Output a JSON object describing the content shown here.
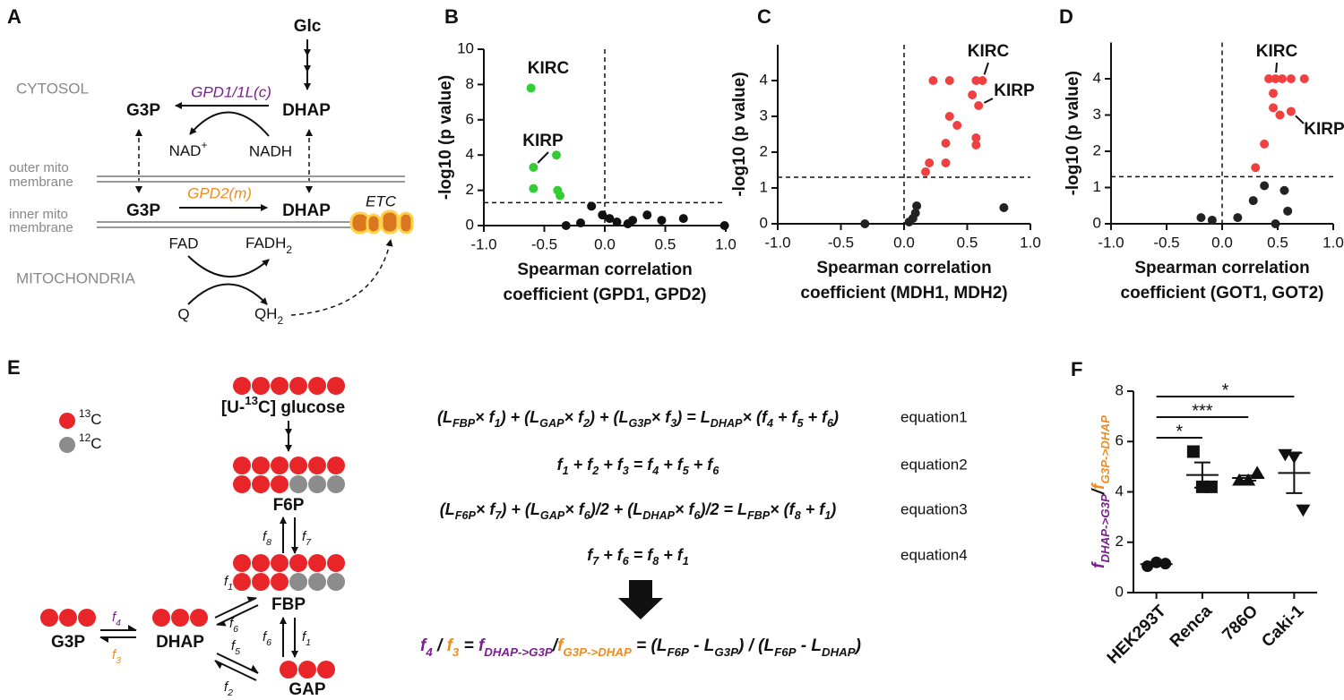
{
  "panel_labels": [
    "A",
    "B",
    "C",
    "D",
    "E",
    "F"
  ],
  "panel_a": {
    "glc": "Glc",
    "cytosol": "CYTOSOL",
    "enzyme_c": "GPD1/1L(c)",
    "g3p_c": "G3P",
    "dhap_c": "DHAP",
    "nad": [
      {
        "t": "NAD",
        "sup": "+"
      }
    ],
    "nadh": "NADH",
    "outer": [
      "outer mito",
      "membrane"
    ],
    "inner": [
      "inner mito",
      "membrane"
    ],
    "g3p_m": "G3P",
    "enzyme_m": "GPD2(m)",
    "dhap_m": "DHAP",
    "etc": "ETC",
    "fad": "FAD",
    "fadh2": [
      {
        "t": "FADH",
        "sub": "2"
      }
    ],
    "mito": "MITOCHONDRIA",
    "q": "Q",
    "qh2": [
      {
        "t": "QH",
        "sub": "2"
      }
    ]
  },
  "panel_e": {
    "glucose": [
      {
        "t": "[U-",
        "sup": "13"
      },
      {
        "t": "C] glucose"
      }
    ],
    "legend": [
      [
        {
          "t": "",
          "sup": "13"
        },
        {
          "t": "C"
        }
      ],
      [
        {
          "t": "",
          "sup": "12"
        },
        {
          "t": "C"
        }
      ]
    ],
    "f6p": "F6P",
    "fbp": "FBP",
    "gap": "GAP",
    "g3p": "G3P",
    "dhap": "DHAP",
    "fluxes": [
      [
        {
          "t": "f",
          "sub": "8"
        }
      ],
      [
        {
          "t": "f",
          "sub": "7"
        }
      ],
      [
        {
          "t": "f",
          "sub": "1"
        }
      ],
      [
        {
          "t": "f",
          "sub": "6"
        }
      ],
      [
        {
          "t": "f",
          "sub": "6"
        }
      ],
      [
        {
          "t": "f",
          "sub": "1"
        }
      ],
      [
        {
          "t": "f",
          "sub": "5"
        }
      ],
      [
        {
          "t": "f",
          "sub": "2"
        }
      ],
      [
        {
          "t": "f",
          "sub": "4",
          "color": "#7a1f8e"
        }
      ],
      [
        {
          "t": "f",
          "sub": "3",
          "color": "#f08c1e"
        }
      ]
    ],
    "equations": [
      [
        {
          "t": "(L",
          "sub": "FBP"
        },
        {
          "t": "× f",
          "sub": "1"
        },
        {
          "t": ") + (L",
          "sub": "GAP"
        },
        {
          "t": "× f",
          "sub": "2"
        },
        {
          "t": ") + (L",
          "sub": "G3P"
        },
        {
          "t": "× f",
          "sub": "3"
        },
        {
          "t": ") = L",
          "sub": "DHAP"
        },
        {
          "t": "× (f",
          "sub": "4"
        },
        {
          "t": " + f",
          "sub": "5"
        },
        {
          "t": " + f",
          "sub": "6"
        },
        {
          "t": ")"
        }
      ],
      [
        {
          "t": "f",
          "sub": "1"
        },
        {
          "t": " + f",
          "sub": "2"
        },
        {
          "t": " + f",
          "sub": "3"
        },
        {
          "t": " = f",
          "sub": "4"
        },
        {
          "t": " + f",
          "sub": "5"
        },
        {
          "t": " + f",
          "sub": "6"
        }
      ],
      [
        {
          "t": "(L",
          "sub": "F6P"
        },
        {
          "t": "× f",
          "sub": "7"
        },
        {
          "t": ") + (L",
          "sub": "GAP"
        },
        {
          "t": "× f",
          "sub": "6"
        },
        {
          "t": ")/2 + (L",
          "sub": "DHAP"
        },
        {
          "t": "× f",
          "sub": "6"
        },
        {
          "t": ")/2 = L",
          "sub": "FBP"
        },
        {
          "t": "× (f",
          "sub": "8"
        },
        {
          "t": " + f",
          "sub": "1"
        },
        {
          "t": ")"
        }
      ],
      [
        {
          "t": "f",
          "sub": "7"
        },
        {
          "t": " + f",
          "sub": "6"
        },
        {
          "t": " = f",
          "sub": "8"
        },
        {
          "t": " + f",
          "sub": "1"
        }
      ]
    ],
    "equation_names": [
      "equation1",
      "equation2",
      "equation3",
      "equation4"
    ],
    "result": [
      {
        "t": "f",
        "sub": "4",
        "color": "#7a1f8e"
      },
      {
        "t": " / "
      },
      {
        "t": "f",
        "sub": "3",
        "color": "#f08c1e"
      },
      {
        "t": " = "
      },
      {
        "t": "f",
        "sub": "DHAP->G3P",
        "color": "#7a1f8e"
      },
      {
        "t": "/"
      },
      {
        "t": "f",
        "sub": "G3P->DHAP",
        "color": "#f08c1e"
      },
      {
        "t": " = (L",
        "sub": "F6P"
      },
      {
        "t": " - L",
        "sub": "G3P"
      },
      {
        "t": ") / (L",
        "sub": "F6P"
      },
      {
        "t": " - L",
        "sub": "DHAP"
      },
      {
        "t": ")"
      }
    ]
  },
  "chart_data": [
    {
      "type": "scatter",
      "ylabel": "-log10 (p value)",
      "xlabel": [
        "Spearman correlation",
        "coefficient (GPD1, GPD2)"
      ],
      "xlim": [
        -1,
        1
      ],
      "xticks": [
        {
          "value": -1,
          "label": "-1.0"
        },
        -0.5,
        {
          "value": 0,
          "label": "0.0"
        },
        0.5,
        {
          "value": 1,
          "label": "1.0"
        }
      ],
      "ylim": [
        0,
        10
      ],
      "yticks": [
        0,
        2,
        4,
        6,
        8,
        10
      ],
      "hlines": [
        1.3
      ],
      "vlines": [
        0
      ],
      "series": [
        {
          "color": "#33cc33",
          "x": [
            -0.61,
            -0.59,
            -0.59,
            -0.4,
            -0.39,
            -0.37
          ],
          "values": [
            7.8,
            3.3,
            2.1,
            4.0,
            2.0,
            1.7
          ]
        },
        {
          "color": "#111111",
          "x": [
            -0.32,
            -0.2,
            -0.11,
            -0.02,
            0.04,
            0.1,
            0.19,
            0.23,
            0.35,
            0.47,
            0.65,
            0.99
          ],
          "values": [
            0,
            0.15,
            1.1,
            0.6,
            0.4,
            0.2,
            0.1,
            0.3,
            0.6,
            0.3,
            0.4,
            0
          ]
        }
      ],
      "annotations": [
        {
          "text": "KIRC",
          "series": 0,
          "point": 0
        },
        {
          "text": "KIRP",
          "series": 0,
          "point": 1
        }
      ]
    },
    {
      "type": "scatter",
      "ylabel": "-log10 (p value)",
      "xlabel": [
        "Spearman correlation",
        "coefficient (MDH1, MDH2)"
      ],
      "xlim": [
        -1,
        1
      ],
      "xticks": [
        {
          "value": -1,
          "label": "-1.0"
        },
        -0.5,
        {
          "value": 0,
          "label": "0.0"
        },
        0.5,
        {
          "value": 1,
          "label": "1.0"
        }
      ],
      "ylim": [
        0,
        5
      ],
      "yticks": [
        0,
        1,
        2,
        3,
        4
      ],
      "hlines": [
        1.3
      ],
      "vlines": [
        0
      ],
      "series": [
        {
          "color": "#f04040",
          "x": [
            0.23,
            0.36,
            0.57,
            0.62,
            0.54,
            0.59,
            0.36,
            0.42,
            0.57,
            0.57,
            0.33,
            0.33,
            0.2,
            0.17
          ],
          "values": [
            4,
            4,
            4,
            4,
            3.6,
            3.3,
            3.0,
            2.75,
            2.4,
            2.2,
            2.25,
            1.7,
            1.7,
            1.45
          ]
        },
        {
          "color": "#222222",
          "x": [
            -0.31,
            0.04,
            0.07,
            0.09,
            0.1,
            0.79
          ],
          "values": [
            0,
            0.05,
            0.15,
            0.3,
            0.5,
            0.45
          ]
        }
      ],
      "annotations": [
        {
          "text": "KIRC",
          "series": 0,
          "point": 3
        },
        {
          "text": "KIRP",
          "series": 0,
          "point": 5
        }
      ]
    },
    {
      "type": "scatter",
      "ylabel": "-log10 (p value)",
      "xlabel": [
        "Spearman correlation",
        "coefficient (GOT1, GOT2)"
      ],
      "xlim": [
        -1,
        1
      ],
      "xticks": [
        {
          "value": -1,
          "label": "-1.0"
        },
        -0.5,
        {
          "value": 0,
          "label": "0.0"
        },
        0.5,
        {
          "value": 1,
          "label": "1.0"
        }
      ],
      "ylim": [
        0,
        5
      ],
      "yticks": [
        0,
        1,
        2,
        3,
        4
      ],
      "hlines": [
        1.3
      ],
      "vlines": [
        0
      ],
      "series": [
        {
          "color": "#f04040",
          "x": [
            0.42,
            0.48,
            0.54,
            0.62,
            0.74,
            0.46,
            0.46,
            0.52,
            0.62,
            0.38,
            0.3
          ],
          "values": [
            4,
            4,
            4,
            4,
            4,
            3.6,
            3.2,
            3.0,
            3.1,
            2.2,
            1.55
          ]
        },
        {
          "color": "#222222",
          "x": [
            -0.19,
            -0.09,
            0.14,
            0.28,
            0.38,
            0.48,
            0.56,
            0.59
          ],
          "values": [
            0.17,
            0.1,
            0.17,
            0.64,
            1.05,
            0,
            0.92,
            0.35
          ]
        }
      ],
      "annotations": [
        {
          "text": "KIRC",
          "series": 0,
          "point": 1
        },
        {
          "text": "KIRP",
          "series": 0,
          "point": 8
        }
      ]
    },
    {
      "type": "dot",
      "ylabel": [
        {
          "t": "f",
          "sub": "DHAP->G3P",
          "color": "#7a1f8e"
        },
        {
          "t": "/"
        },
        {
          "t": "f",
          "sub": "G3P->DHAP",
          "color": "#f08c1e"
        }
      ],
      "categories": [
        "HEK293T",
        "Renca",
        "786O",
        "Caki-1"
      ],
      "markers": [
        "circle",
        "square",
        "triangle",
        "triangle-down"
      ],
      "points": [
        [
          1.05,
          1.2,
          1.15
        ],
        [
          5.6,
          4.2,
          4.2
        ],
        [
          4.45,
          4.45,
          4.75
        ],
        [
          5.5,
          5.4,
          3.3
        ]
      ],
      "means": [
        1.13,
        4.67,
        4.55,
        4.75
      ],
      "errors": [
        0.05,
        0.5,
        0.1,
        0.8
      ],
      "ylim": [
        0,
        8
      ],
      "yticks": [
        0,
        2,
        4,
        6,
        8
      ],
      "color": "#111111",
      "comparisons": [
        {
          "pair": [
            0,
            1
          ],
          "label": "*"
        },
        {
          "pair": [
            0,
            2
          ],
          "label": "***"
        },
        {
          "pair": [
            0,
            3
          ],
          "label": "*"
        }
      ]
    }
  ]
}
